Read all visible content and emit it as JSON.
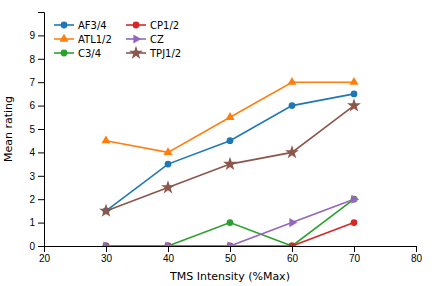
{
  "chart_data": {
    "type": "line",
    "xlabel": "TMS Intensity (%Max)",
    "ylabel": "Mean rating",
    "x": [
      30,
      40,
      50,
      60,
      70
    ],
    "series": [
      {
        "name": "AF3/4",
        "marker": "circle",
        "values": [
          1.5,
          3.5,
          4.5,
          6.0,
          6.5
        ]
      },
      {
        "name": "ATL1/2",
        "marker": "triangle-up",
        "values": [
          4.5,
          4.0,
          5.5,
          7.0,
          7.0
        ]
      },
      {
        "name": "C3/4",
        "marker": "circle",
        "values": [
          0.0,
          0.0,
          1.0,
          0.0,
          2.0
        ]
      },
      {
        "name": "CP1/2",
        "marker": "circle",
        "values": [
          0.0,
          0.0,
          0.0,
          0.0,
          1.0
        ]
      },
      {
        "name": "CZ",
        "marker": "triangle-right",
        "values": [
          0.0,
          0.0,
          0.0,
          1.0,
          2.0
        ]
      },
      {
        "name": "TPJ1/2",
        "marker": "star",
        "values": [
          1.5,
          2.5,
          3.5,
          4.0,
          6.0
        ]
      }
    ],
    "xlim": [
      20,
      80
    ],
    "ylim": [
      0,
      10
    ],
    "xticks": [
      20,
      30,
      40,
      50,
      60,
      70,
      80
    ],
    "yticks": [
      0,
      1,
      2,
      3,
      4,
      5,
      6,
      7,
      8,
      9
    ],
    "grid": false,
    "legend": "upper-left"
  }
}
